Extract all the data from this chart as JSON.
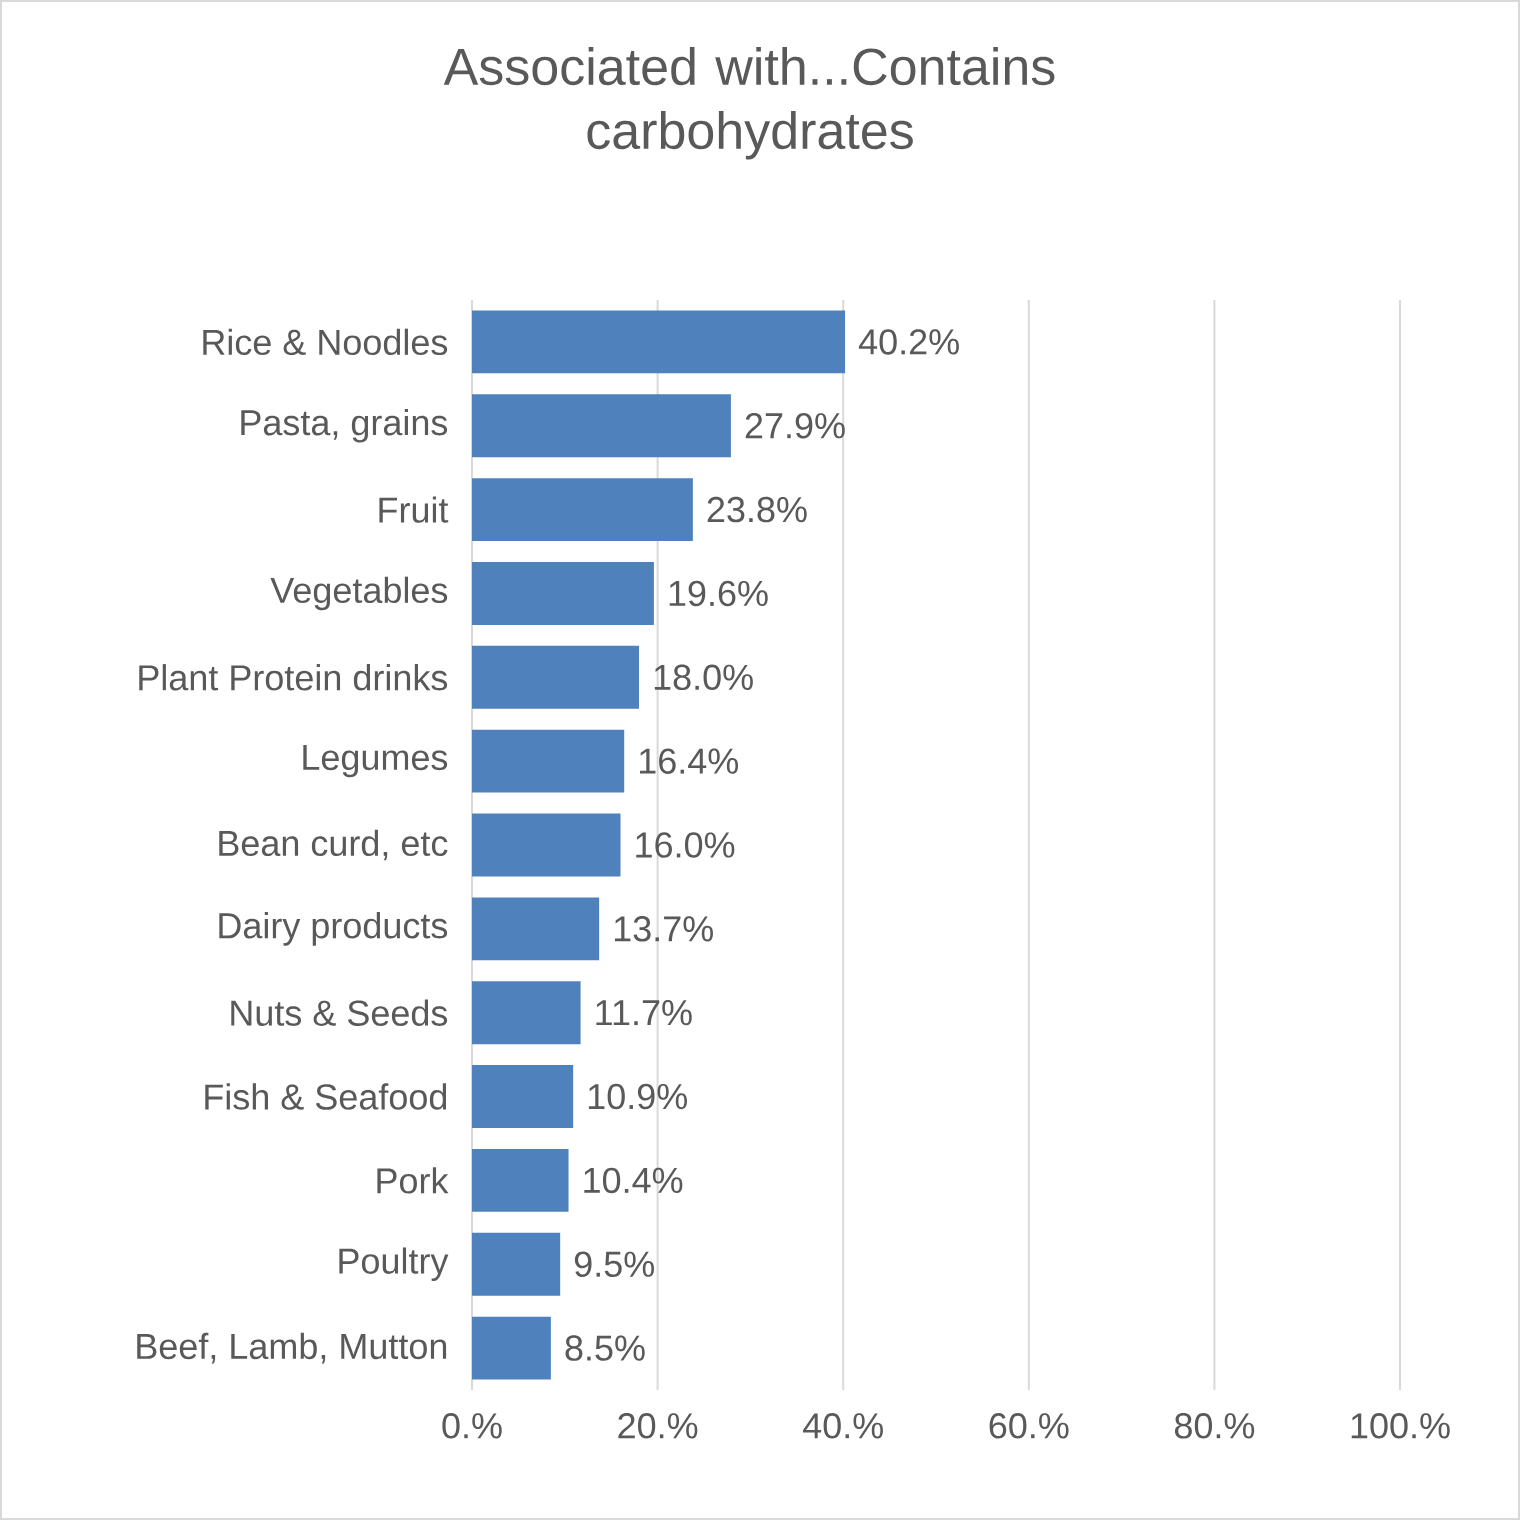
{
  "chart_data": {
    "type": "bar",
    "orientation": "horizontal",
    "title": "Associated with...Contains carbohydrates",
    "categories": [
      "Rice & Noodles",
      "Pasta, grains",
      "Fruit",
      "Vegetables",
      "Plant Protein drinks",
      "Legumes",
      "Bean curd, etc",
      "Dairy products",
      "Nuts & Seeds",
      "Fish & Seafood",
      "Pork",
      "Poultry",
      "Beef, Lamb, Mutton"
    ],
    "values": [
      40.2,
      27.9,
      23.8,
      19.6,
      18.0,
      16.4,
      16.0,
      13.7,
      11.7,
      10.9,
      10.4,
      9.5,
      8.5
    ],
    "value_labels": [
      "40.2%",
      "27.9%",
      "23.8%",
      "19.6%",
      "18.0%",
      "16.4%",
      "16.0%",
      "13.7%",
      "11.7%",
      "10.9%",
      "10.4%",
      "9.5%",
      "8.5%"
    ],
    "color": "#4f81bd",
    "xlim": [
      0,
      100
    ],
    "xticks": [
      {
        "value": 0,
        "label": "0.%"
      },
      {
        "value": 20,
        "label": "20.%"
      },
      {
        "value": 40,
        "label": "40.%"
      },
      {
        "value": 60,
        "label": "60.%"
      },
      {
        "value": 80,
        "label": "80.%"
      },
      {
        "value": 100,
        "label": "100.%"
      }
    ],
    "grid": "x"
  }
}
